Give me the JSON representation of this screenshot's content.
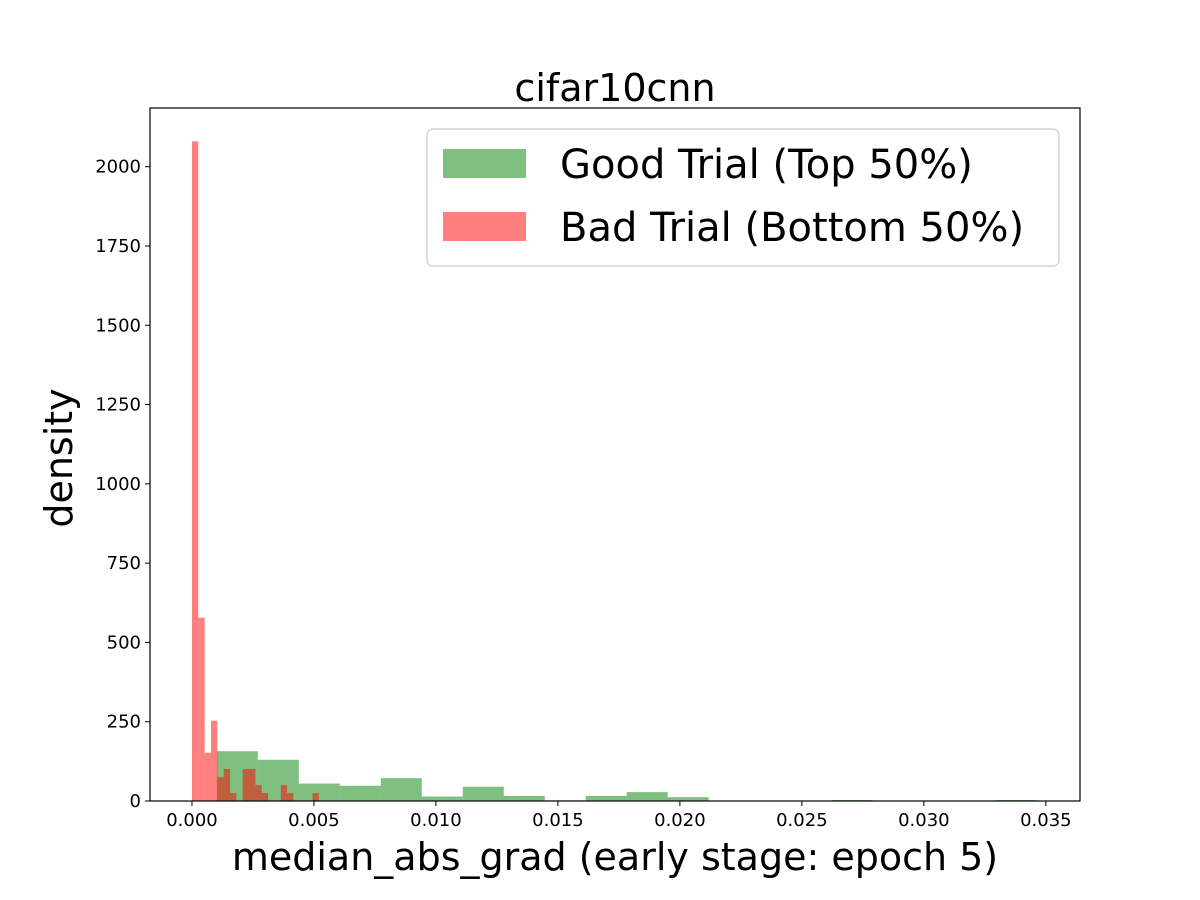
{
  "chart_data": {
    "type": "bar",
    "title": "cifar10cnn",
    "xlabel": "median_abs_grad (early stage: epoch 5)",
    "ylabel": "density",
    "xlim": [
      -0.00172,
      0.0364
    ],
    "ylim": [
      0,
      2185
    ],
    "xticks": [
      {
        "value": 0.0,
        "label": "0.000"
      },
      {
        "value": 0.005,
        "label": "0.005"
      },
      {
        "value": 0.01,
        "label": "0.010"
      },
      {
        "value": 0.015,
        "label": "0.015"
      },
      {
        "value": 0.02,
        "label": "0.020"
      },
      {
        "value": 0.025,
        "label": "0.025"
      },
      {
        "value": 0.03,
        "label": "0.030"
      },
      {
        "value": 0.035,
        "label": "0.035"
      }
    ],
    "yticks": [
      {
        "value": 0,
        "label": "0"
      },
      {
        "value": 250,
        "label": "250"
      },
      {
        "value": 500,
        "label": "500"
      },
      {
        "value": 750,
        "label": "750"
      },
      {
        "value": 1000,
        "label": "1000"
      },
      {
        "value": 1250,
        "label": "1250"
      },
      {
        "value": 1500,
        "label": "1500"
      },
      {
        "value": 1750,
        "label": "1750"
      },
      {
        "value": 2000,
        "label": "2000"
      }
    ],
    "grid": false,
    "legend_position": "top-right",
    "series": [
      {
        "name": "Good Trial (Top 50%)",
        "color": "#008000",
        "alpha": 0.5,
        "bins": [
          {
            "x0": 0.00102,
            "x1": 0.0027,
            "value": 157
          },
          {
            "x0": 0.0027,
            "x1": 0.00438,
            "value": 130
          },
          {
            "x0": 0.00438,
            "x1": 0.00606,
            "value": 55
          },
          {
            "x0": 0.00606,
            "x1": 0.00774,
            "value": 48
          },
          {
            "x0": 0.00774,
            "x1": 0.00942,
            "value": 72
          },
          {
            "x0": 0.00942,
            "x1": 0.0111,
            "value": 14
          },
          {
            "x0": 0.0111,
            "x1": 0.01278,
            "value": 45
          },
          {
            "x0": 0.01278,
            "x1": 0.01446,
            "value": 16
          },
          {
            "x0": 0.01446,
            "x1": 0.01614,
            "value": 2
          },
          {
            "x0": 0.01614,
            "x1": 0.01782,
            "value": 16
          },
          {
            "x0": 0.01782,
            "x1": 0.0195,
            "value": 28
          },
          {
            "x0": 0.0195,
            "x1": 0.02118,
            "value": 12
          },
          {
            "x0": 0.02118,
            "x1": 0.02286,
            "value": 0
          },
          {
            "x0": 0.02286,
            "x1": 0.02454,
            "value": 0
          },
          {
            "x0": 0.02454,
            "x1": 0.02622,
            "value": 0
          },
          {
            "x0": 0.02622,
            "x1": 0.0279,
            "value": 3
          },
          {
            "x0": 0.0279,
            "x1": 0.02958,
            "value": 0
          },
          {
            "x0": 0.02958,
            "x1": 0.03126,
            "value": 0
          },
          {
            "x0": 0.03126,
            "x1": 0.03294,
            "value": 0
          },
          {
            "x0": 0.03294,
            "x1": 0.03462,
            "value": 3
          }
        ]
      },
      {
        "name": "Bad Trial (Bottom 50%)",
        "color": "#ff0000",
        "alpha": 0.5,
        "bins": [
          {
            "x0": 0.0,
            "x1": 0.00026,
            "value": 2080
          },
          {
            "x0": 0.00026,
            "x1": 0.00052,
            "value": 578
          },
          {
            "x0": 0.00052,
            "x1": 0.00078,
            "value": 152
          },
          {
            "x0": 0.00078,
            "x1": 0.00104,
            "value": 253
          },
          {
            "x0": 0.00104,
            "x1": 0.0013,
            "value": 75
          },
          {
            "x0": 0.0013,
            "x1": 0.00156,
            "value": 101
          },
          {
            "x0": 0.00156,
            "x1": 0.00182,
            "value": 25
          },
          {
            "x0": 0.00182,
            "x1": 0.00208,
            "value": 0
          },
          {
            "x0": 0.00208,
            "x1": 0.00234,
            "value": 101
          },
          {
            "x0": 0.00234,
            "x1": 0.0026,
            "value": 101
          },
          {
            "x0": 0.0026,
            "x1": 0.00286,
            "value": 50
          },
          {
            "x0": 0.00286,
            "x1": 0.00312,
            "value": 25
          },
          {
            "x0": 0.00312,
            "x1": 0.00338,
            "value": 0
          },
          {
            "x0": 0.00338,
            "x1": 0.00364,
            "value": 0
          },
          {
            "x0": 0.00364,
            "x1": 0.0039,
            "value": 50
          },
          {
            "x0": 0.0039,
            "x1": 0.00416,
            "value": 25
          },
          {
            "x0": 0.00416,
            "x1": 0.00442,
            "value": 0
          },
          {
            "x0": 0.00442,
            "x1": 0.00468,
            "value": 0
          },
          {
            "x0": 0.00468,
            "x1": 0.00494,
            "value": 0
          },
          {
            "x0": 0.00494,
            "x1": 0.0052,
            "value": 25
          }
        ]
      }
    ]
  }
}
